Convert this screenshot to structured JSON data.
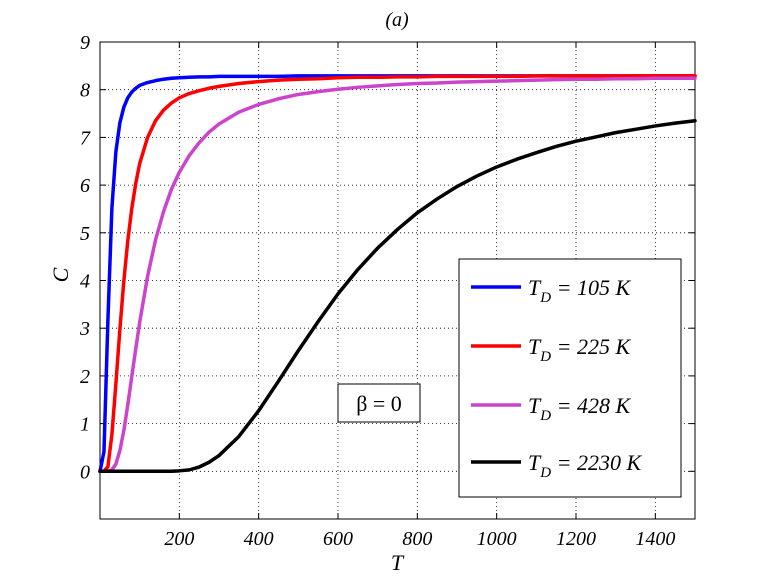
{
  "chart_data": {
    "type": "line",
    "title": "(a)",
    "xlabel": "T",
    "ylabel": "C",
    "xlim": [
      0,
      1500
    ],
    "ylim": [
      -1,
      9
    ],
    "xticks": [
      200,
      400,
      600,
      800,
      1000,
      1200,
      1400
    ],
    "xtick_labels": [
      "200",
      "400",
      "600",
      "800",
      "1000",
      "1200",
      "1400"
    ],
    "yticks": [
      0,
      1,
      2,
      3,
      4,
      5,
      6,
      7,
      8,
      9
    ],
    "ytick_labels": [
      "0",
      "1",
      "2",
      "3",
      "4",
      "5",
      "6",
      "7",
      "8",
      "9"
    ],
    "grid": true,
    "legend_position": "lower-right",
    "annotation": "β = 0",
    "x": [
      0,
      10,
      20,
      30,
      40,
      50,
      60,
      70,
      80,
      90,
      100,
      120,
      140,
      160,
      180,
      200,
      225,
      250,
      275,
      300,
      350,
      400,
      450,
      500,
      550,
      600,
      650,
      700,
      750,
      800,
      850,
      900,
      950,
      1000,
      1050,
      1100,
      1150,
      1200,
      1250,
      1300,
      1350,
      1400,
      1450,
      1500
    ],
    "series": [
      {
        "name": "T_D = 105 K",
        "legend_main": "T",
        "legend_sub": "D",
        "legend_rest": " = 105 K",
        "color": "#0000ff",
        "values": [
          0,
          0.41,
          3.18,
          5.52,
          6.7,
          7.3,
          7.63,
          7.83,
          7.95,
          8.03,
          8.09,
          8.15,
          8.19,
          8.22,
          8.24,
          8.25,
          8.26,
          8.27,
          8.27,
          8.28,
          8.28,
          8.28,
          8.28,
          8.29,
          8.29,
          8.29,
          8.29,
          8.29,
          8.29,
          8.29,
          8.29,
          8.29,
          8.29,
          8.29,
          8.29,
          8.29,
          8.29,
          8.29,
          8.29,
          8.29,
          8.29,
          8.29,
          8.29,
          8.29
        ]
      },
      {
        "name": "T_D = 225 K",
        "legend_main": "T",
        "legend_sub": "D",
        "legend_rest": " = 225 K",
        "color": "#ff0000",
        "values": [
          0,
          0.001,
          0.1,
          0.77,
          1.83,
          2.96,
          3.98,
          4.83,
          5.5,
          6.03,
          6.45,
          7.0,
          7.35,
          7.57,
          7.72,
          7.83,
          7.92,
          7.98,
          8.03,
          8.07,
          8.13,
          8.17,
          8.2,
          8.22,
          8.23,
          8.25,
          8.26,
          8.26,
          8.27,
          8.27,
          8.28,
          8.28,
          8.28,
          8.28,
          8.28,
          8.29,
          8.29,
          8.29,
          8.29,
          8.29,
          8.29,
          8.29,
          8.29,
          8.29
        ]
      },
      {
        "name": "T_D = 428 K",
        "legend_main": "T",
        "legend_sub": "D",
        "legend_rest": " = 428 K",
        "color": "#cc44cc",
        "values": [
          0,
          0,
          0.001,
          0.03,
          0.15,
          0.43,
          0.85,
          1.39,
          1.98,
          2.56,
          3.12,
          4.09,
          4.85,
          5.44,
          5.91,
          6.27,
          6.62,
          6.89,
          7.11,
          7.28,
          7.53,
          7.69,
          7.81,
          7.9,
          7.96,
          8.01,
          8.05,
          8.08,
          8.11,
          8.13,
          8.14,
          8.16,
          8.17,
          8.18,
          8.19,
          8.2,
          8.21,
          8.22,
          8.22,
          8.23,
          8.23,
          8.24,
          8.24,
          8.24
        ]
      },
      {
        "name": "T_D = 2230 K",
        "legend_main": "T",
        "legend_sub": "D",
        "legend_rest": " = 2230 K",
        "color": "#000000",
        "values": [
          0,
          0,
          0,
          0,
          0,
          0,
          0,
          0,
          0,
          0,
          0,
          0,
          0,
          0,
          0,
          0.01,
          0.03,
          0.09,
          0.19,
          0.33,
          0.73,
          1.27,
          1.89,
          2.53,
          3.14,
          3.72,
          4.23,
          4.68,
          5.07,
          5.42,
          5.71,
          5.97,
          6.19,
          6.38,
          6.54,
          6.68,
          6.81,
          6.92,
          7.01,
          7.1,
          7.17,
          7.24,
          7.3,
          7.35
        ]
      }
    ]
  }
}
